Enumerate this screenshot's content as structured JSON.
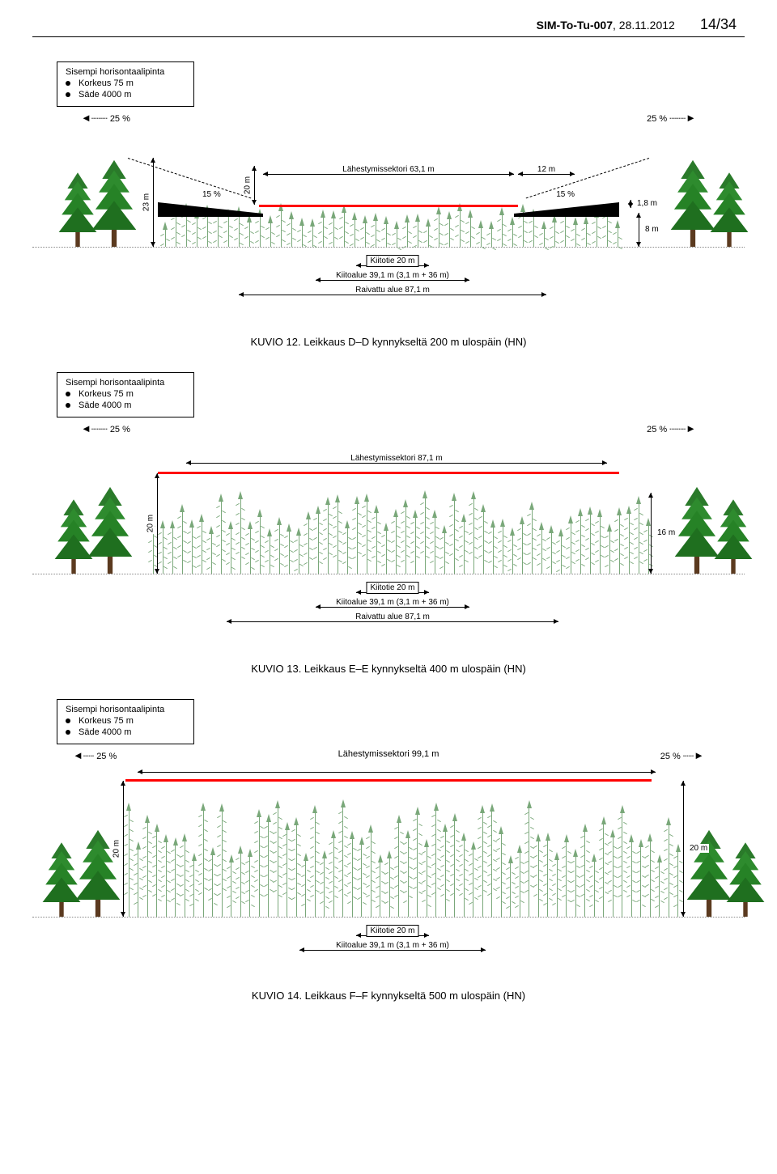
{
  "doc": {
    "code": "SIM-To-Tu-007",
    "date": "28.11.2012",
    "page": "14/34"
  },
  "box": {
    "title": "Sisempi horisontaalipinta",
    "r1": "Korkeus 75 m",
    "r2": "Säde 4000 m"
  },
  "pct25": "25 %",
  "fig1": {
    "sector": "Lähestymissektori 63,1 m",
    "sector_dist": "12 m",
    "slope": "15 %",
    "h23": "23 m",
    "h20": "20 m",
    "h18": "1,8 m",
    "h8": "8 m",
    "runway": "Kiitotie 20 m",
    "area": "Kiitoalue 39,1 m (3,1 m + 36 m)",
    "cleared": "Raivattu alue 87,1 m",
    "caption": "KUVIO 12. Leikkaus D–D kynnykseltä 200 m ulospäin (HN)"
  },
  "fig2": {
    "sector": "Lähestymissektori 87,1 m",
    "h20": "20 m",
    "h16": "16 m",
    "runway": "Kiitotie 20 m",
    "area": "Kiitoalue 39,1 m (3,1 m + 36 m)",
    "cleared": "Raivattu alue 87,1 m",
    "caption": "KUVIO 13. Leikkaus E–E kynnykseltä 400 m ulospäin (HN)"
  },
  "fig3": {
    "sector": "Lähestymissektori 99,1 m",
    "h20": "20 m",
    "runway": "Kiitotie 20 m",
    "area": "Kiitoalue 39,1 m (3,1 m + 36 m)",
    "caption": "KUVIO 14. Leikkaus F–F kynnykseltä 500 m ulospäin (HN)"
  },
  "colors": {
    "red": "#ff0000",
    "tree_dark": "#1f6f1f",
    "tree_light": "#7aa87a",
    "ground": "#888888",
    "black": "#000000"
  }
}
